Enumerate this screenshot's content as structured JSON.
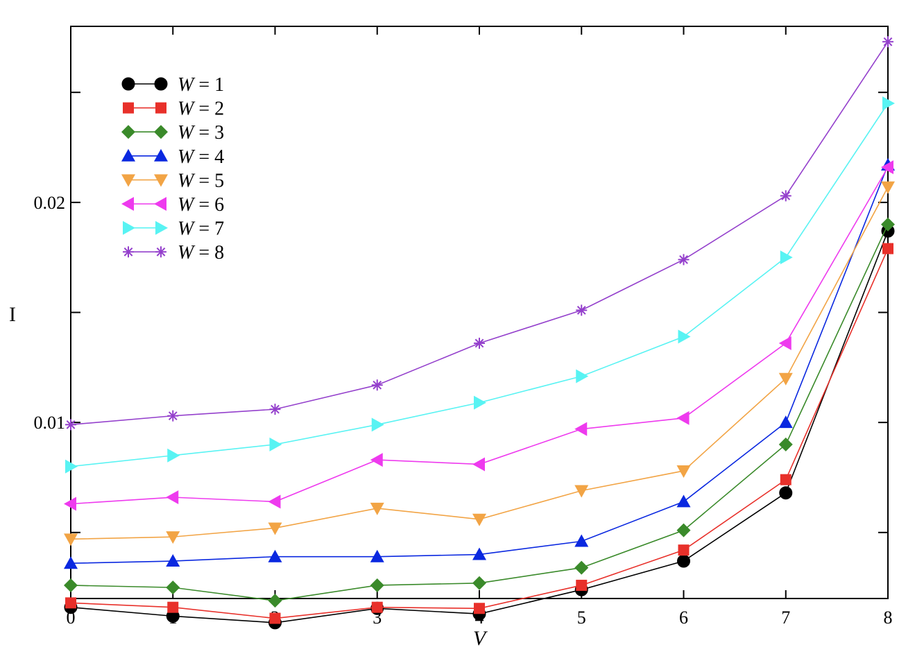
{
  "chart_data": {
    "type": "line",
    "xlabel": "V",
    "ylabel": "I",
    "xlim": [
      0,
      8
    ],
    "ylim": [
      0.002,
      0.028
    ],
    "x_ticks": [
      0,
      1,
      2,
      3,
      4,
      5,
      6,
      7,
      8
    ],
    "y_ticks_labeled": [
      0.01,
      0.02
    ],
    "y_tick_labels": [
      "0.01",
      "0.02"
    ],
    "y_ticks_minor": [
      0.005,
      0.015,
      0.025
    ],
    "grid": false,
    "legend_position": "top-left",
    "x": [
      0,
      1,
      2,
      3,
      4,
      5,
      6,
      7,
      8
    ],
    "series": [
      {
        "name": "W = 1",
        "marker": "circle",
        "color": "#000000",
        "line_color": "#000000",
        "values": [
          0.0016,
          0.0012,
          0.0009,
          0.00155,
          0.0013,
          0.0024,
          0.0037,
          0.0068,
          0.0187
        ]
      },
      {
        "name": "W = 2",
        "marker": "square",
        "color": "#e8302a",
        "line_color": "#e8302a",
        "values": [
          0.0018,
          0.0016,
          0.0011,
          0.0016,
          0.00155,
          0.0026,
          0.0042,
          0.0074,
          0.0179
        ]
      },
      {
        "name": "W = 3",
        "marker": "diamond",
        "color": "#3a8a2a",
        "line_color": "#3a8a2a",
        "values": [
          0.0026,
          0.0025,
          0.0019,
          0.0026,
          0.0027,
          0.0034,
          0.0051,
          0.009,
          0.019
        ]
      },
      {
        "name": "W = 4",
        "marker": "triangle-up",
        "color": "#0a28e0",
        "line_color": "#0a28e0",
        "values": [
          0.0036,
          0.0037,
          0.0039,
          0.0039,
          0.004,
          0.0046,
          0.0064,
          0.01,
          0.0217
        ]
      },
      {
        "name": "W = 5",
        "marker": "triangle-down",
        "color": "#f2a445",
        "line_color": "#f2a445",
        "values": [
          0.0047,
          0.0048,
          0.0052,
          0.0061,
          0.0056,
          0.0069,
          0.0078,
          0.012,
          0.0207
        ]
      },
      {
        "name": "W = 6",
        "marker": "triangle-left",
        "color": "#ee3aee",
        "line_color": "#ee3aee",
        "values": [
          0.0063,
          0.0066,
          0.0064,
          0.0083,
          0.0081,
          0.0097,
          0.0102,
          0.0136,
          0.0216
        ]
      },
      {
        "name": "W = 7",
        "marker": "triangle-right",
        "color": "#58f3f3",
        "line_color": "#58f3f3",
        "values": [
          0.008,
          0.0085,
          0.009,
          0.0099,
          0.0109,
          0.0121,
          0.0139,
          0.0175,
          0.0245
        ]
      },
      {
        "name": "W = 8",
        "marker": "star",
        "color": "#9440cc",
        "line_color": "#9440cc",
        "values": [
          0.0099,
          0.0103,
          0.0106,
          0.0117,
          0.0136,
          0.0151,
          0.0174,
          0.0203,
          0.0273
        ]
      }
    ]
  }
}
